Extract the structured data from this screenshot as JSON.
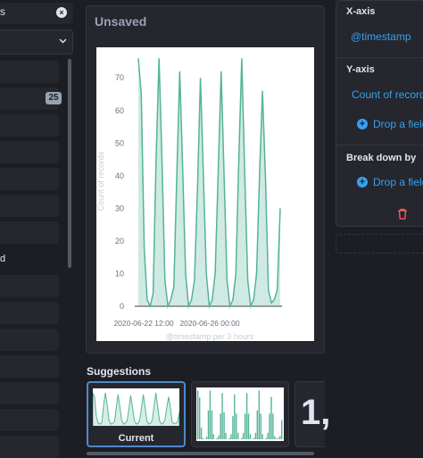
{
  "sidebar": {
    "search_text": "s",
    "record_count": "25",
    "partial_field": "d"
  },
  "workspace": {
    "title": "Unsaved",
    "suggestions_title": "Suggestions",
    "current_label": "Current",
    "metric_preview": "1,"
  },
  "config": {
    "x_axis_title": "X-axis",
    "x_axis_field": "@timestamp",
    "y_axis_title": "Y-axis",
    "y_axis_field": "Count of records",
    "breakdown_title": "Break down by",
    "drop_field_label": "Drop a field"
  },
  "colors": {
    "series": "#54b399",
    "accent": "#36a2ef",
    "danger": "#f66"
  },
  "chart_data": {
    "type": "area",
    "xlabel": "@timestamp per 3 hours",
    "ylabel": "Count of records",
    "x_ticks": [
      "2020-06-22 12:00",
      "2020-06-26 00:00"
    ],
    "y_ticks": [
      0,
      10,
      20,
      30,
      40,
      50,
      60,
      70
    ],
    "ylim": [
      0,
      78
    ],
    "grid": false,
    "series": [
      {
        "values": [
          76,
          65,
          18,
          2,
          0,
          4,
          45,
          76,
          45,
          8,
          0,
          2,
          6,
          40,
          72,
          42,
          10,
          0,
          2,
          8,
          36,
          70,
          40,
          10,
          0,
          2,
          10,
          40,
          72,
          40,
          8,
          0,
          2,
          10,
          45,
          76,
          40,
          8,
          0,
          2,
          10,
          40,
          66,
          40,
          5,
          1,
          2,
          5,
          30
        ]
      }
    ]
  }
}
